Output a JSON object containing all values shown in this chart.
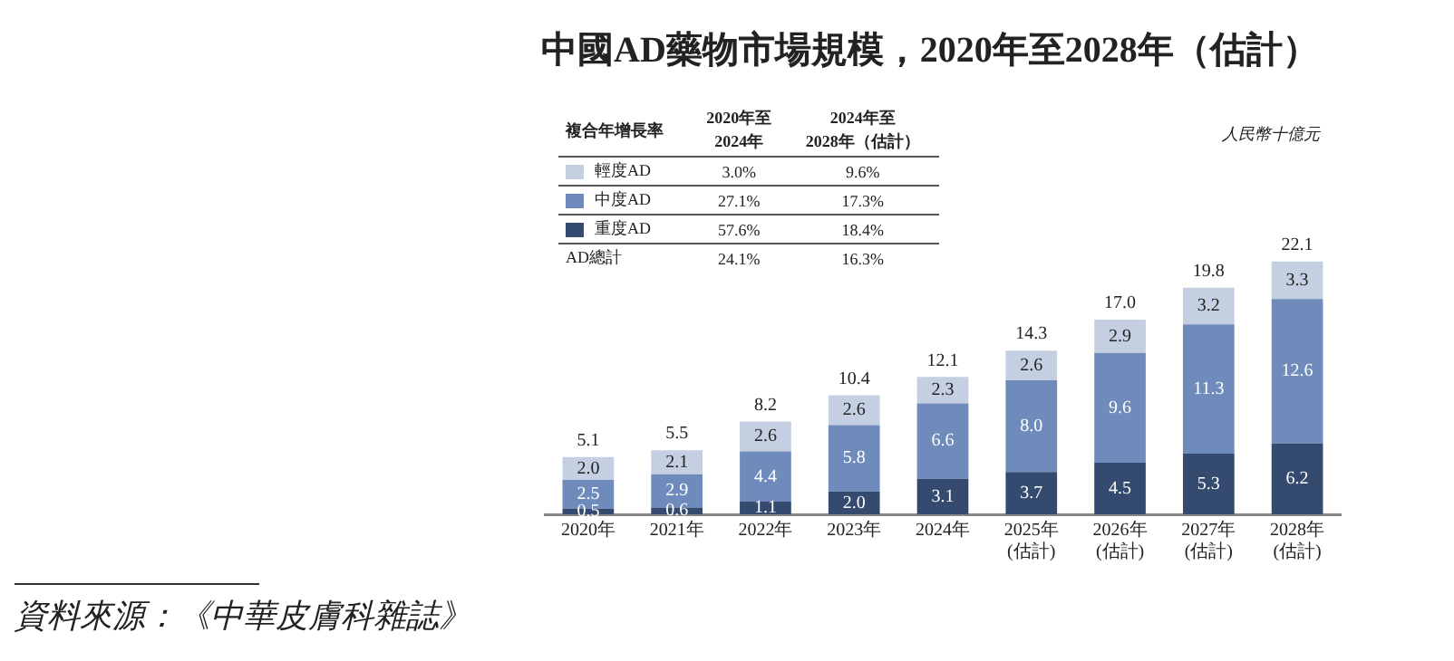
{
  "chart_data": {
    "type": "bar",
    "title": "中國AD藥物市場規模，2020年至2028年（估計）",
    "legend": "top left",
    "legend_title": "複合年增長率",
    "stacked": true,
    "categories": [
      "2020年",
      "2021年",
      "2022年",
      "2023年",
      "2024年",
      "2025年\n(估計)",
      "2026年\n(估計)",
      "2027年\n(估計)",
      "2028年\n(估計)"
    ],
    "series": [
      {
        "name": "重度AD",
        "color": "#344a6e",
        "values": [
          0.5,
          0.6,
          1.1,
          2.0,
          3.1,
          3.7,
          4.5,
          5.3,
          6.2
        ],
        "value_labels": [
          "0.5",
          "0.6",
          "1.1",
          "2.0",
          "3.1",
          "3.7",
          "4.5",
          "5.3",
          "6.2"
        ]
      },
      {
        "name": "中度AD",
        "color": "#6e8bbb",
        "values": [
          2.5,
          2.9,
          4.4,
          5.8,
          6.6,
          8.0,
          9.6,
          11.3,
          12.6
        ],
        "value_labels": [
          "2.5",
          "2.9",
          "4.4",
          "5.8",
          "6.6",
          "8.0",
          "9.6",
          "11.3",
          "12.6"
        ]
      },
      {
        "name": "輕度AD",
        "color": "#c5cfe2",
        "values": [
          2.0,
          2.1,
          2.6,
          2.6,
          2.3,
          2.6,
          2.9,
          3.2,
          3.3
        ],
        "value_labels": [
          "2.0",
          "2.1",
          "2.6",
          "2.6",
          "2.3",
          "2.6",
          "2.9",
          "3.2",
          "3.3"
        ]
      }
    ],
    "totals": [
      "5.1",
      "5.5",
      "8.2",
      "10.4",
      "12.1",
      "14.3",
      "17.0",
      "19.8",
      "22.1"
    ],
    "annotations": [
      "2020年至\n2024年",
      "2024年至\n2028年（估計）",
      "3.0%",
      "9.6%",
      "27.1%",
      "17.3%",
      "57.6%",
      "18.4%",
      "AD總計",
      "24.1%",
      "16.3%",
      "資料來源：《中華皮膚科雜誌》",
      "人民幣十億元"
    ]
  }
}
